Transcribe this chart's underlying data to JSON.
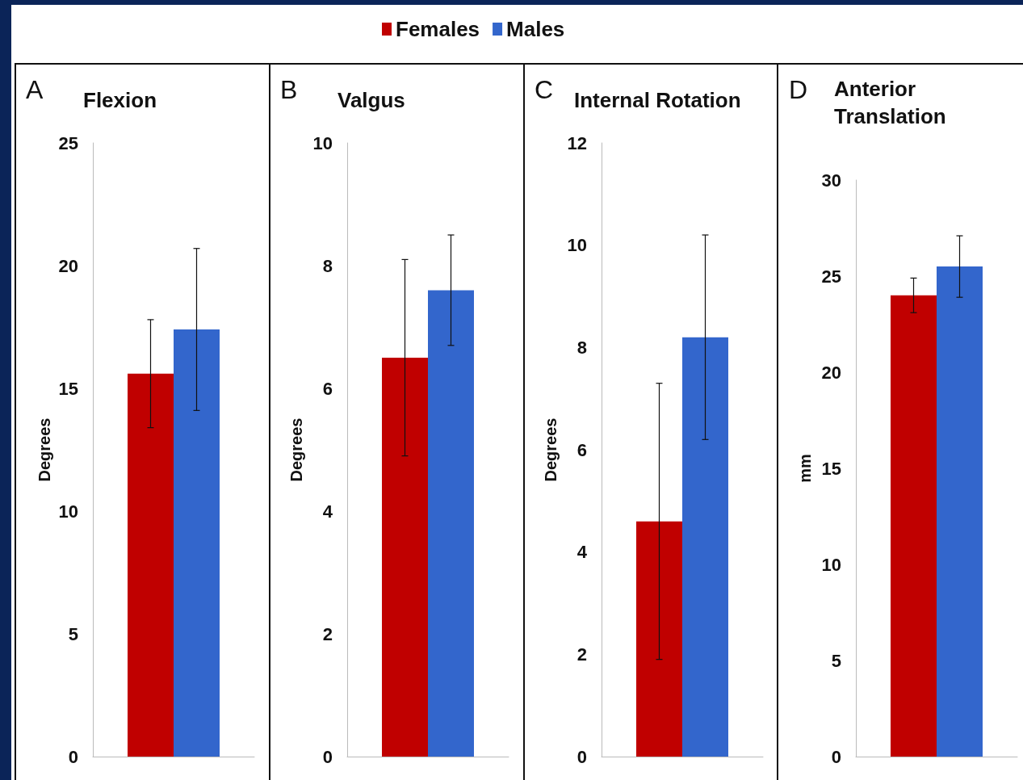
{
  "chart_data": [
    {
      "type": "bar",
      "title": "Flexion",
      "ylabel": "Degrees",
      "annotations": [
        "A"
      ],
      "categories": [
        null
      ],
      "series": [
        {
          "name": "Females",
          "color": "#c00000",
          "values": [
            15.6
          ],
          "errors": [
            2.2
          ]
        },
        {
          "name": "Males",
          "color": "#3366cc",
          "values": [
            17.4
          ],
          "errors": [
            3.3
          ]
        }
      ],
      "ylim": [
        0,
        25
      ],
      "yticks": [
        0,
        5,
        10,
        15,
        20,
        25
      ],
      "legend": "top",
      "tick_labels": "y"
    },
    {
      "type": "bar",
      "title": "Valgus",
      "ylabel": "Degrees",
      "annotations": [
        "B"
      ],
      "categories": [
        null
      ],
      "series": [
        {
          "color": "#c00000",
          "values": [
            6.5
          ],
          "errors": [
            1.6
          ]
        },
        {
          "color": "#3366cc",
          "values": [
            7.6
          ],
          "errors": [
            0.9
          ]
        }
      ],
      "ylim": [
        0,
        10
      ],
      "yticks": [
        0,
        2,
        4,
        6,
        8,
        10
      ],
      "tick_labels": "y"
    },
    {
      "type": "bar",
      "title": "Internal Rotation",
      "ylabel": "Degrees",
      "annotations": [
        "C"
      ],
      "categories": [
        null
      ],
      "series": [
        {
          "color": "#c00000",
          "values": [
            4.6
          ],
          "errors": [
            2.7
          ]
        },
        {
          "color": "#3366cc",
          "values": [
            8.2
          ],
          "errors": [
            2.0
          ]
        }
      ],
      "ylim": [
        0,
        12
      ],
      "yticks": [
        0,
        2,
        4,
        6,
        8,
        10,
        12
      ],
      "tick_labels": "y"
    },
    {
      "type": "bar",
      "title": "Anterior Translation",
      "ylabel": "mm",
      "annotations": [
        "D"
      ],
      "categories": [
        null
      ],
      "series": [
        {
          "color": "#c00000",
          "values": [
            24.0
          ],
          "errors": [
            0.9
          ]
        },
        {
          "color": "#3366cc",
          "values": [
            25.5
          ],
          "errors": [
            1.6
          ]
        }
      ],
      "ylim": [
        0,
        30
      ],
      "yticks": [
        0,
        5,
        10,
        15,
        20,
        25,
        30
      ],
      "tick_labels": "y"
    }
  ]
}
